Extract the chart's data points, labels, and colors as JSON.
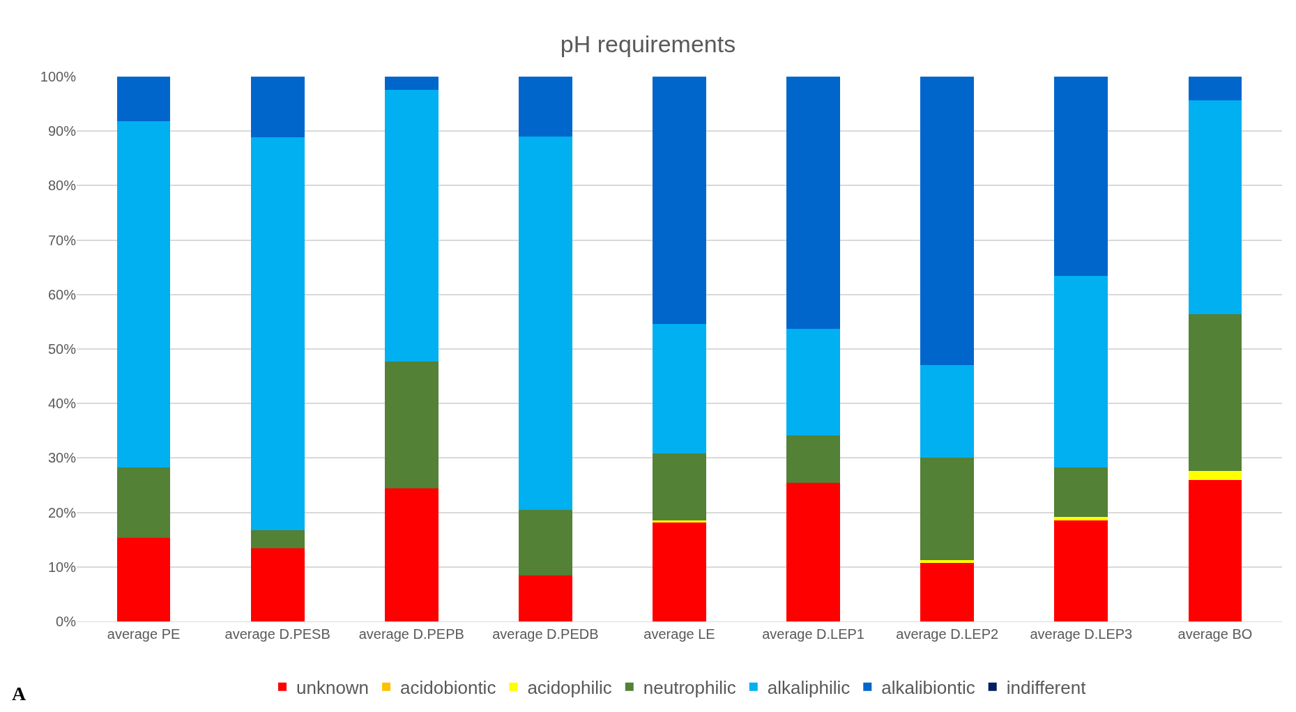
{
  "chart_data": {
    "type": "bar",
    "title": "pH requirements",
    "stacked": true,
    "categories": [
      "average PE",
      "average D.PESB",
      "average D.PEPB",
      "average D.PEDB",
      "average LE",
      "average D.LEP1",
      "average D.LEP2",
      "average D.LEP3",
      "average BO"
    ],
    "series": [
      {
        "name": "unknown",
        "color": "#ff0000",
        "values": [
          15.4,
          13.4,
          24.4,
          8.5,
          18.1,
          25.5,
          10.7,
          18.6,
          25.9
        ]
      },
      {
        "name": "acidobiontic",
        "color": "#ffc000",
        "values": [
          0,
          0,
          0,
          0,
          0,
          0,
          0,
          0,
          0
        ]
      },
      {
        "name": "acidophilic",
        "color": "#ffff00",
        "values": [
          0,
          0,
          0,
          0,
          0.5,
          0,
          0.6,
          0.6,
          1.7
        ]
      },
      {
        "name": "neutrophilic",
        "color": "#538135",
        "values": [
          12.8,
          3.4,
          23.3,
          11.9,
          12.2,
          8.6,
          18.7,
          9.0,
          28.8
        ]
      },
      {
        "name": "alkaliphilic",
        "color": "#00b0f0",
        "values": [
          63.6,
          72.1,
          49.9,
          68.6,
          23.8,
          19.6,
          17.0,
          35.2,
          39.3
        ]
      },
      {
        "name": "alkalibiontic",
        "color": "#0066cc",
        "values": [
          8.2,
          11.1,
          2.4,
          11.0,
          45.4,
          46.3,
          53.0,
          36.6,
          4.3
        ]
      },
      {
        "name": "indifferent",
        "color": "#002060",
        "values": [
          0,
          0,
          0,
          0,
          0,
          0,
          0,
          0,
          0
        ]
      }
    ],
    "ylim": [
      0,
      100
    ],
    "yticks": [
      {
        "value": 0,
        "label": "0%"
      },
      {
        "value": 10,
        "label": "10%"
      },
      {
        "value": 20,
        "label": "20%"
      },
      {
        "value": 30,
        "label": "30%"
      },
      {
        "value": 40,
        "label": "40%"
      },
      {
        "value": 50,
        "label": "50%"
      },
      {
        "value": 60,
        "label": "60%"
      },
      {
        "value": 70,
        "label": "70%"
      },
      {
        "value": 80,
        "label": "80%"
      },
      {
        "value": 90,
        "label": "90%"
      },
      {
        "value": 100,
        "label": "100%"
      }
    ],
    "grid": "y",
    "legend": "bottom",
    "annotations": [
      "A"
    ]
  }
}
